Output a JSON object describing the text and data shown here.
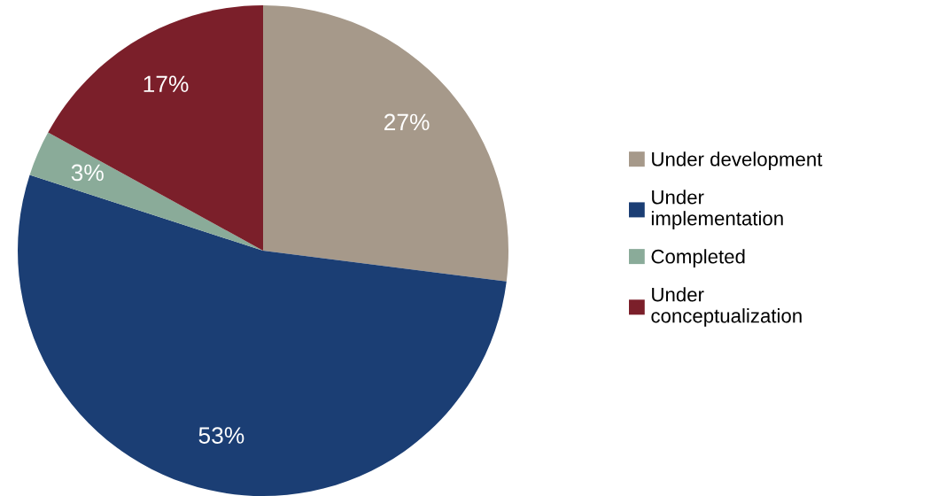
{
  "chart_data": {
    "type": "pie",
    "categories": [
      "Under development",
      "Under implementation",
      "Completed",
      "Under conceptualization"
    ],
    "values": [
      27,
      53,
      3,
      17
    ],
    "value_labels": [
      "27%",
      "53%",
      "3%",
      "17%"
    ],
    "colors": [
      "#a6998a",
      "#1b3e74",
      "#8aab99",
      "#7b1f2a"
    ],
    "legend": "right"
  }
}
